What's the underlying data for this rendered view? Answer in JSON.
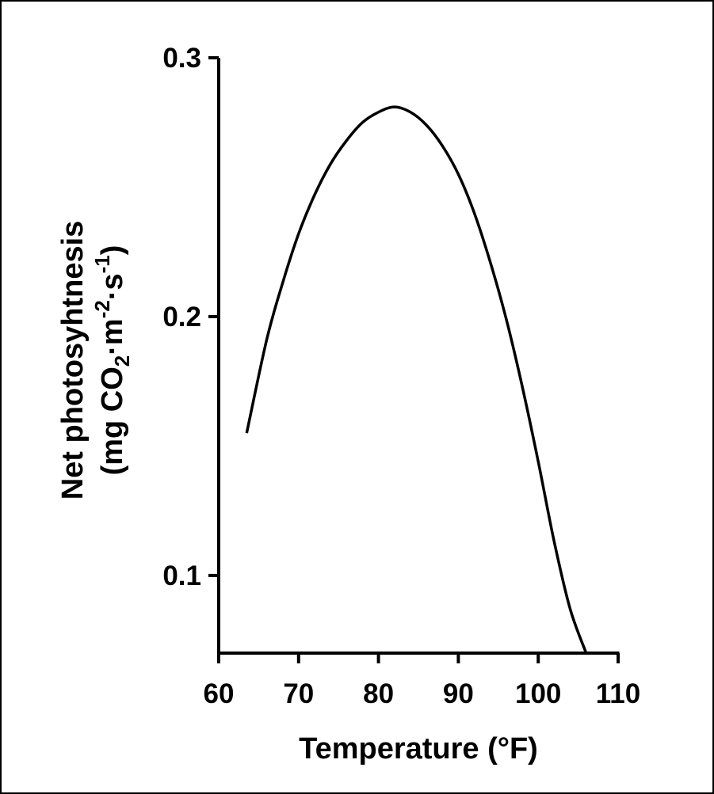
{
  "chart_data": {
    "type": "line",
    "title": "",
    "xlabel": "Temperature (°F)",
    "ylabel": {
      "line1": "Net photosyhtnesis",
      "line2_prefix": "(mg CO",
      "line2_sub": "2",
      "line2_mid": "·m",
      "line2_sup1": "-2",
      "line2_mid2": "·s",
      "line2_sup2": "-1",
      "line2_suffix": ")"
    },
    "xlim": [
      60,
      110
    ],
    "ylim": [
      0.07,
      0.3
    ],
    "x_ticks": [
      60,
      70,
      80,
      90,
      100,
      110
    ],
    "x_tick_labels": [
      "60",
      "70",
      "80",
      "90",
      "100",
      "110"
    ],
    "y_ticks": [
      0.1,
      0.2,
      0.3
    ],
    "y_tick_labels": [
      "0.1",
      "0.2",
      "0.3"
    ],
    "grid": false,
    "legend": "none",
    "line_color": "#000000",
    "series": [
      {
        "x": [
          63.5,
          66,
          68,
          70,
          72,
          74,
          76,
          78,
          80,
          82,
          84,
          86,
          88,
          90,
          92,
          94,
          96,
          98,
          100,
          102,
          104,
          106
        ],
        "values": [
          0.155,
          0.191,
          0.213,
          0.232,
          0.247,
          0.259,
          0.268,
          0.275,
          0.279,
          0.281,
          0.279,
          0.274,
          0.266,
          0.255,
          0.24,
          0.221,
          0.199,
          0.173,
          0.144,
          0.113,
          0.087,
          0.07
        ]
      }
    ]
  }
}
